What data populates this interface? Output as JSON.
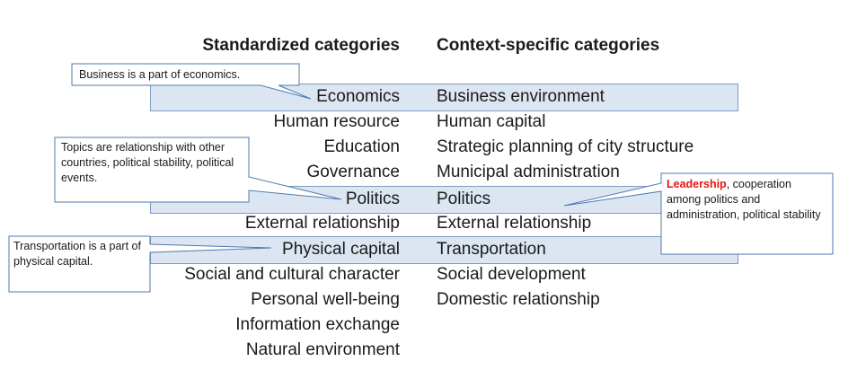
{
  "headers": {
    "standardized": "Standardized categories",
    "context_specific": "Context-specific categories"
  },
  "standardized": [
    "Economics",
    "Human resource",
    "Education",
    "Governance",
    "Politics",
    "External relationship",
    "Physical capital",
    "Social and cultural character",
    "Personal well-being",
    "Information exchange",
    "Natural environment"
  ],
  "context_specific": [
    "Business environment",
    "Human capital",
    "Strategic planning of city structure",
    "Municipal administration",
    "Politics",
    "External relationship",
    "Transportation",
    "Social development",
    "Domestic relationship"
  ],
  "highlighted_pairs": [
    "Economics",
    "Politics",
    "Physical capital"
  ],
  "callouts": {
    "business": "Business is a part of economics.",
    "topics": "Topics are relationship with other countries, political stability, political events.",
    "transportation": "Transportation is a part of physical capital.",
    "leadership_highlight": "Leadership",
    "leadership_rest": ", cooperation among politics and administration, political stability"
  },
  "colors": {
    "band_fill": "#dce6f2",
    "band_border": "#7f9cc0",
    "highlight_red": "#e8160f"
  }
}
